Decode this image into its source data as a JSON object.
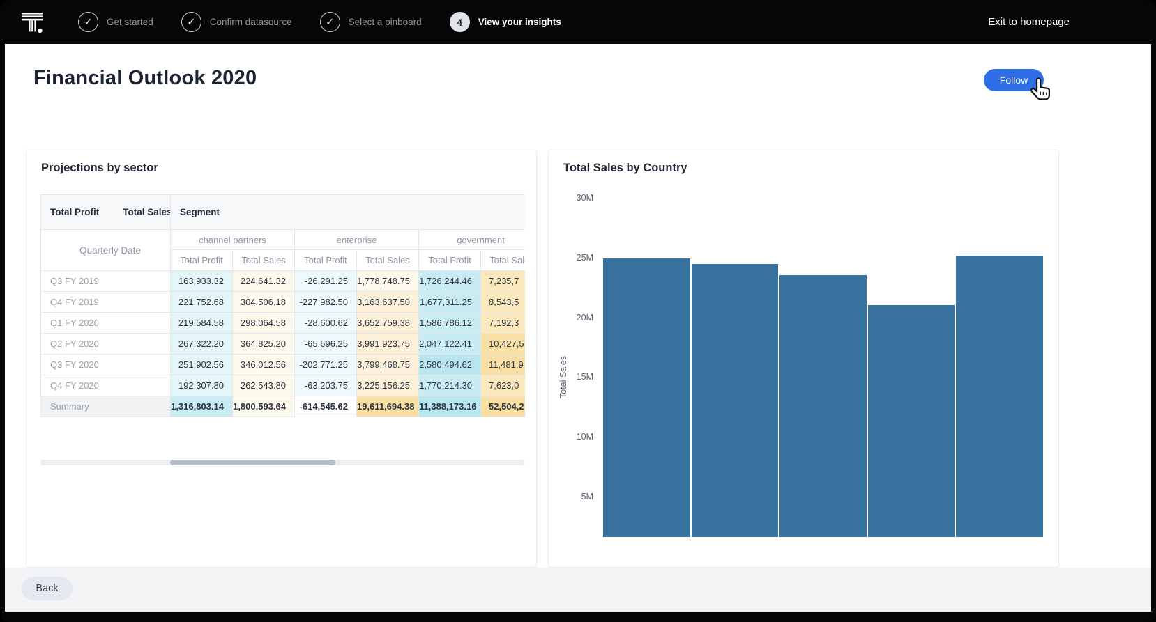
{
  "topbar": {
    "exit_label": "Exit to homepage",
    "stepper": {
      "steps": [
        {
          "label": "Get started",
          "state": "done"
        },
        {
          "label": "Confirm datasource",
          "state": "done"
        },
        {
          "label": "Select a pinboard",
          "state": "done"
        },
        {
          "label": "View your insights",
          "state": "current",
          "number": "4"
        }
      ]
    }
  },
  "page": {
    "title": "Financial Outlook 2020",
    "follow_label": "Follow",
    "back_label": "Back"
  },
  "table_card": {
    "title": "Projections by sector",
    "corner_headers": [
      "Total Profit",
      "Total Sales"
    ],
    "segment_header": "Segment",
    "row_header": "Quarterly Date",
    "groups": [
      "channel partners",
      "enterprise",
      "government"
    ],
    "sub_headers": [
      "Total Profit",
      "Total Sales",
      "Total Profit",
      "Total Sales",
      "Total Profit",
      "Total Sales"
    ],
    "rows": [
      {
        "label": "Q3 FY 2019",
        "cells": [
          {
            "v": "163,933.32",
            "c": "cyanL"
          },
          {
            "v": "224,641.32",
            "c": "creamL"
          },
          {
            "v": "-26,291.25",
            "c": "cyanVL"
          },
          {
            "v": "1,778,748.75",
            "c": "creamL"
          },
          {
            "v": "1,726,244.46",
            "c": "cyanD"
          },
          {
            "v": "7,235,7",
            "c": "yellowM",
            "clip": true
          }
        ]
      },
      {
        "label": "Q4 FY 2019",
        "cells": [
          {
            "v": "221,752.68",
            "c": "cyanL"
          },
          {
            "v": "304,506.18",
            "c": "creamL"
          },
          {
            "v": "-227,982.50",
            "c": "cyanVL"
          },
          {
            "v": "3,163,637.50",
            "c": "creamM"
          },
          {
            "v": "1,677,311.25",
            "c": "cyanD"
          },
          {
            "v": "8,543,5",
            "c": "yellowM",
            "clip": true
          }
        ]
      },
      {
        "label": "Q1 FY 2020",
        "cells": [
          {
            "v": "219,584.58",
            "c": "cyanL"
          },
          {
            "v": "298,064.58",
            "c": "creamL"
          },
          {
            "v": "-28,600.62",
            "c": "cyanVL"
          },
          {
            "v": "3,652,759.38",
            "c": "creamM"
          },
          {
            "v": "1,586,786.12",
            "c": "cyanD"
          },
          {
            "v": "7,192,3",
            "c": "yellowM",
            "clip": true
          }
        ]
      },
      {
        "label": "Q2 FY 2020",
        "cells": [
          {
            "v": "267,322.20",
            "c": "cyanL"
          },
          {
            "v": "364,825.20",
            "c": "creamL"
          },
          {
            "v": "-65,696.25",
            "c": "cyanVL"
          },
          {
            "v": "3,991,923.75",
            "c": "creamM"
          },
          {
            "v": "2,047,122.41",
            "c": "cyanD"
          },
          {
            "v": "10,427,5",
            "c": "yellowD",
            "clip": true
          }
        ]
      },
      {
        "label": "Q3 FY 2020",
        "cells": [
          {
            "v": "251,902.56",
            "c": "cyanL"
          },
          {
            "v": "346,012.56",
            "c": "creamL"
          },
          {
            "v": "-202,771.25",
            "c": "cyanVL"
          },
          {
            "v": "3,799,468.75",
            "c": "creamM"
          },
          {
            "v": "2,580,494.62",
            "c": "cyanDD"
          },
          {
            "v": "11,481,9",
            "c": "yellowD",
            "clip": true
          }
        ]
      },
      {
        "label": "Q4 FY 2020",
        "cells": [
          {
            "v": "192,307.80",
            "c": "cyanL"
          },
          {
            "v": "262,543.80",
            "c": "creamL"
          },
          {
            "v": "-63,203.75",
            "c": "cyanVL"
          },
          {
            "v": "3,225,156.25",
            "c": "creamM"
          },
          {
            "v": "1,770,214.30",
            "c": "cyanD"
          },
          {
            "v": "7,623,0",
            "c": "yellowM",
            "clip": true
          }
        ]
      },
      {
        "label": "Summary",
        "summary": true,
        "cells": [
          {
            "v": "1,316,803.14",
            "c": "cyanD"
          },
          {
            "v": "1,800,593.64",
            "c": "creamL"
          },
          {
            "v": "-614,545.62",
            "c": "white"
          },
          {
            "v": "19,611,694.38",
            "c": "yellowD"
          },
          {
            "v": "11,388,173.16",
            "c": "cyanDD"
          },
          {
            "v": "52,504,2",
            "c": "yellowD",
            "clip": true
          }
        ]
      }
    ]
  },
  "chart_card": {
    "title": "Total Sales by Country"
  },
  "chart_data": {
    "type": "bar",
    "title": "Total Sales by Country",
    "ylabel": "Total Sales",
    "yticks": [
      "30M",
      "25M",
      "20M",
      "15M",
      "10M",
      "5M"
    ],
    "ylim": [
      0,
      30
    ],
    "unit": "M",
    "values": [
      25.0,
      24.5,
      23.6,
      21.1,
      25.2
    ],
    "categories": [
      "",
      "",
      "",
      "",
      ""
    ],
    "x_axis_labels_visible": false,
    "bar_color": "#38739f",
    "grid": false,
    "legend": "none"
  },
  "colors": {
    "accent_blue": "#2e6ee6",
    "bar_blue": "#38739f",
    "topbar_black": "#060606",
    "footer_gray": "#f3f4f6",
    "tint_cyan_light": "#e4f6f9",
    "tint_cyan_dark": "#c9ecf2",
    "tint_cream_light": "#fdf9ec",
    "tint_cream_medium": "#fcf0d9",
    "tint_yellow_medium": "#fbe8bd",
    "tint_yellow_dark": "#f8dfa3"
  }
}
